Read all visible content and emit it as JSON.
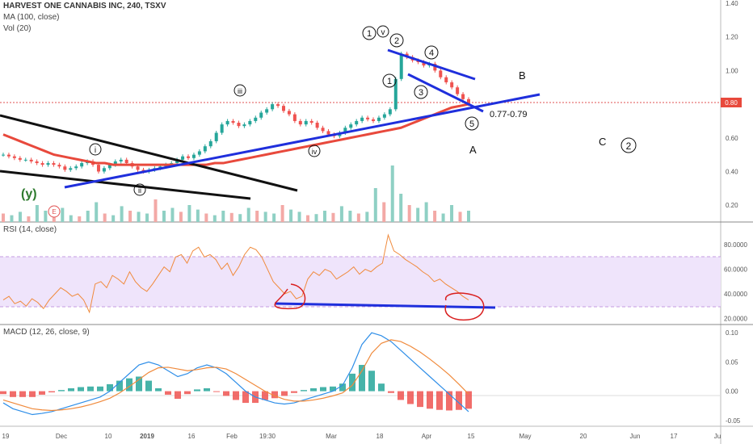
{
  "header": {
    "title": "HARVEST ONE CANNABIS INC, 240, TSXV",
    "ma_label": "MA (100, close)",
    "vol_label": "Vol (20)",
    "rsi_label": "RSI (14, close)",
    "macd_label": "MACD (12, 26, close, 9)"
  },
  "colors": {
    "up": "#26a69a",
    "down": "#ef5350",
    "ma": "#e8493c",
    "trend_blue": "#1f2fdc",
    "trend_black": "#111111",
    "rsi_line": "#f08a3c",
    "rsi_band": "#efe4fb",
    "macd_line": "#2e8ee8",
    "signal_line": "#f08a3c",
    "annotation_red": "#d91f1f"
  },
  "chart_data": {
    "type": "candlestick",
    "x_tick_labels": [
      "19",
      "Dec",
      "10",
      "2019",
      "16",
      "Feb",
      "19:30",
      "Mar",
      "18",
      "Apr",
      "15",
      "May",
      "20",
      "Jun",
      "17",
      "Ju"
    ],
    "price_panel": {
      "y_ticks": [
        "1.40",
        "1.20",
        "1.00",
        "0.80",
        "0.60",
        "0.40",
        "0.20"
      ],
      "ylim": [
        0.1,
        1.4
      ],
      "current_price": "0.80",
      "close_series": [
        0.5,
        0.49,
        0.48,
        0.47,
        0.47,
        0.46,
        0.45,
        0.44,
        0.45,
        0.44,
        0.43,
        0.41,
        0.42,
        0.43,
        0.45,
        0.46,
        0.44,
        0.4,
        0.42,
        0.44,
        0.46,
        0.47,
        0.45,
        0.43,
        0.41,
        0.4,
        0.41,
        0.42,
        0.43,
        0.44,
        0.45,
        0.47,
        0.49,
        0.48,
        0.5,
        0.52,
        0.55,
        0.58,
        0.63,
        0.68,
        0.7,
        0.69,
        0.67,
        0.68,
        0.7,
        0.72,
        0.75,
        0.77,
        0.8,
        0.79,
        0.76,
        0.74,
        0.7,
        0.68,
        0.7,
        0.69,
        0.66,
        0.64,
        0.62,
        0.61,
        0.63,
        0.66,
        0.68,
        0.7,
        0.72,
        0.71,
        0.7,
        0.72,
        0.74,
        0.77,
        0.95,
        1.1,
        1.08,
        1.06,
        1.05,
        1.03,
        1.04,
        1.0,
        0.96,
        0.93,
        0.9,
        0.86,
        0.83,
        0.8
      ],
      "ma100": [
        0.62,
        0.6,
        0.58,
        0.56,
        0.54,
        0.52,
        0.5,
        0.49,
        0.48,
        0.47,
        0.46,
        0.45,
        0.45,
        0.44,
        0.44,
        0.44,
        0.44,
        0.44,
        0.44,
        0.44,
        0.44,
        0.44,
        0.44,
        0.44,
        0.44,
        0.45,
        0.45,
        0.46,
        0.47,
        0.48,
        0.49,
        0.5,
        0.51,
        0.52,
        0.53,
        0.54,
        0.55,
        0.56,
        0.57,
        0.58,
        0.59,
        0.6,
        0.61,
        0.62,
        0.63,
        0.64,
        0.65,
        0.66,
        0.68,
        0.7,
        0.72,
        0.74,
        0.76,
        0.78,
        0.79,
        0.8
      ],
      "volume": [
        0.15,
        0.12,
        0.18,
        0.1,
        0.3,
        0.2,
        0.15,
        0.25,
        0.12,
        0.1,
        0.2,
        0.35,
        0.15,
        0.12,
        0.28,
        0.2,
        0.18,
        0.15,
        0.4,
        0.2,
        0.25,
        0.18,
        0.3,
        0.22,
        0.15,
        0.12,
        0.2,
        0.16,
        0.14,
        0.25,
        0.2,
        0.18,
        0.15,
        0.3,
        0.22,
        0.18,
        0.12,
        0.14,
        0.2,
        0.16,
        0.28,
        0.2,
        0.15,
        0.18,
        0.6,
        0.35,
        1.0,
        0.5,
        0.3,
        0.25,
        0.35,
        0.2,
        0.15,
        0.3,
        0.18,
        0.2
      ]
    },
    "rsi_panel": {
      "y_ticks": [
        "80.0000",
        "60.0000",
        "40.0000",
        "20.0000"
      ],
      "ylim": [
        15,
        90
      ],
      "band": [
        30,
        70
      ],
      "values": [
        35,
        38,
        32,
        34,
        30,
        36,
        33,
        28,
        35,
        40,
        45,
        42,
        38,
        40,
        35,
        25,
        48,
        50,
        45,
        55,
        52,
        48,
        58,
        50,
        45,
        42,
        48,
        55,
        62,
        58,
        70,
        72,
        65,
        75,
        78,
        70,
        72,
        68,
        60,
        65,
        55,
        62,
        72,
        78,
        76,
        70,
        60,
        50,
        45,
        40,
        42,
        36,
        38,
        52,
        58,
        55,
        60,
        58,
        52,
        55,
        58,
        62,
        56,
        60,
        58,
        62,
        65,
        88,
        75,
        72,
        68,
        65,
        62,
        58,
        55,
        50,
        52,
        48,
        45,
        42,
        38,
        35
      ]
    },
    "macd_panel": {
      "y_ticks": [
        "0.10",
        "0.05",
        "0.00",
        "-0.05"
      ],
      "ylim": [
        -0.06,
        0.11
      ],
      "macd": [
        -0.02,
        -0.03,
        -0.035,
        -0.04,
        -0.038,
        -0.035,
        -0.03,
        -0.025,
        -0.02,
        -0.015,
        -0.01,
        0.0,
        0.015,
        0.03,
        0.045,
        0.05,
        0.045,
        0.035,
        0.025,
        0.03,
        0.04,
        0.045,
        0.04,
        0.03,
        0.015,
        0.0,
        -0.01,
        -0.015,
        -0.02,
        -0.022,
        -0.02,
        -0.015,
        -0.01,
        -0.005,
        0.0,
        0.01,
        0.04,
        0.08,
        0.1,
        0.095,
        0.085,
        0.07,
        0.055,
        0.04,
        0.025,
        0.01,
        -0.005,
        -0.02,
        -0.035
      ],
      "signal": [
        -0.015,
        -0.02,
        -0.025,
        -0.03,
        -0.032,
        -0.033,
        -0.032,
        -0.03,
        -0.027,
        -0.023,
        -0.018,
        -0.012,
        -0.003,
        0.008,
        0.02,
        0.032,
        0.04,
        0.041,
        0.038,
        0.035,
        0.037,
        0.04,
        0.041,
        0.038,
        0.03,
        0.02,
        0.01,
        0.0,
        -0.008,
        -0.014,
        -0.017,
        -0.017,
        -0.015,
        -0.012,
        -0.008,
        -0.003,
        0.01,
        0.035,
        0.065,
        0.082,
        0.088,
        0.085,
        0.077,
        0.067,
        0.055,
        0.042,
        0.028,
        0.012,
        -0.005
      ]
    },
    "annotations": {
      "y": "(y)",
      "earnings": "E",
      "wave_i": "i",
      "wave_ii": "ii",
      "wave_iii": "iii",
      "wave_iv": "iv",
      "wave_v": "v",
      "one_top": "1",
      "two": "2",
      "one": "1",
      "three": "3",
      "four": "4",
      "five": "5",
      "price_target": "0.77-0.79",
      "A": "A",
      "B": "B",
      "C": "C",
      "two_right": "2"
    }
  }
}
